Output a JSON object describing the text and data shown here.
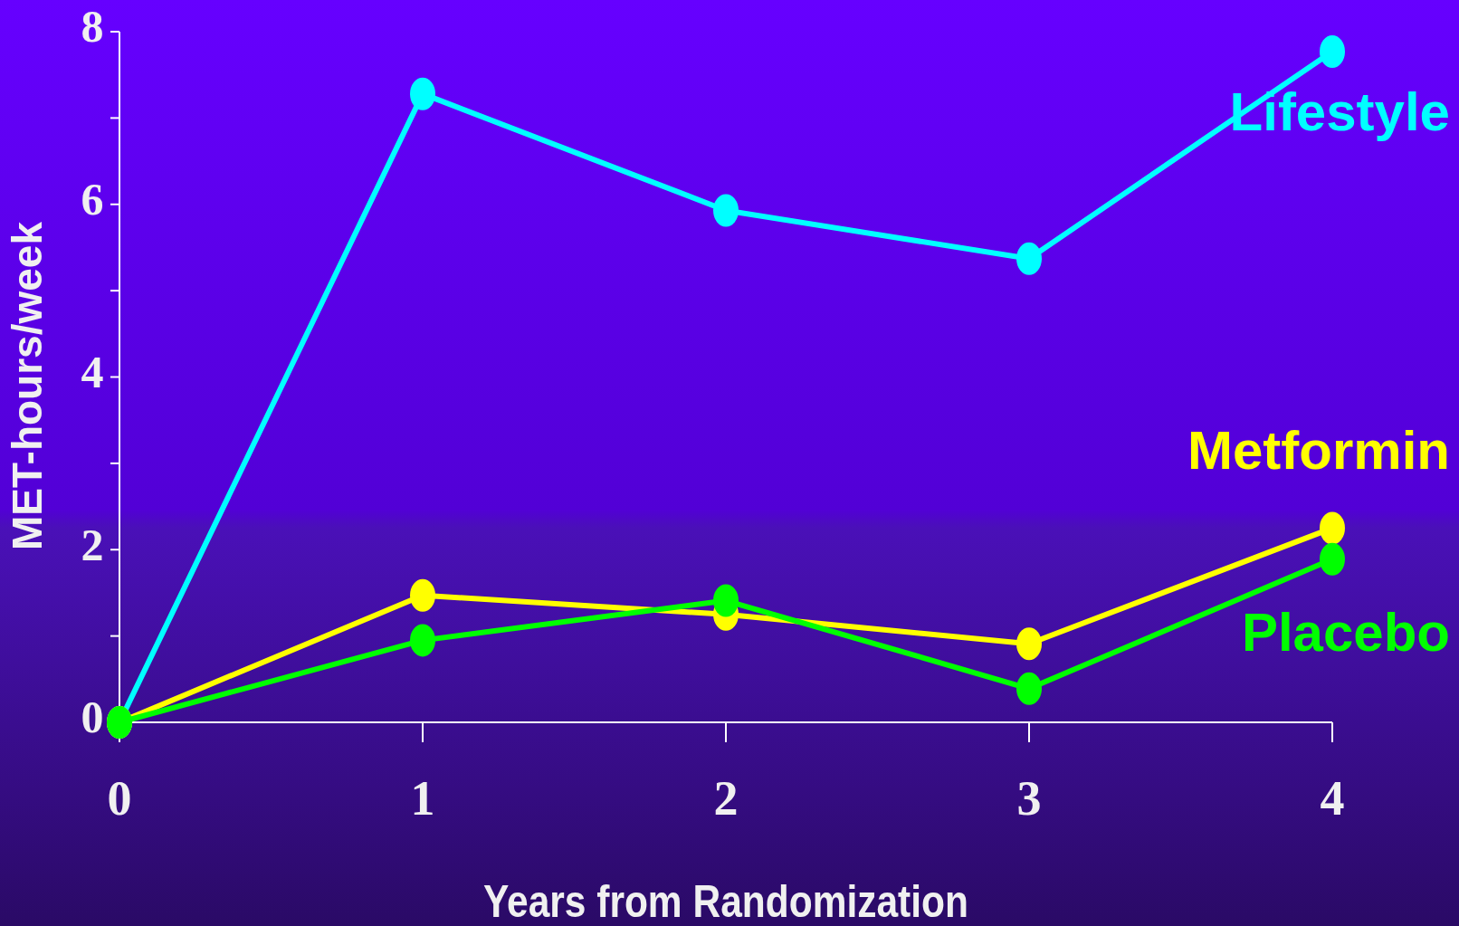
{
  "chart_data": {
    "type": "line",
    "xlabel": "Years from Randomization",
    "ylabel": "MET-hours/week",
    "x": [
      0,
      1,
      2,
      3,
      4
    ],
    "xlim": [
      0,
      4
    ],
    "xticks": [
      0,
      1,
      2,
      3,
      4
    ],
    "ylim": [
      0,
      8
    ],
    "yticks": [
      0,
      {
        "value": 1,
        "label": null
      },
      2,
      {
        "value": 3,
        "label": null
      },
      4,
      {
        "value": 5,
        "label": null
      },
      6,
      {
        "value": 7,
        "label": null
      },
      8
    ],
    "marker": "circle",
    "grid": false,
    "legend": false,
    "series": [
      {
        "name": "Lifestyle",
        "color": "#00ffff",
        "values": [
          0,
          7.28,
          5.93,
          5.37,
          7.77
        ]
      },
      {
        "name": "Metformin",
        "color": "#ffff00",
        "values": [
          0,
          1.47,
          1.25,
          0.91,
          2.25
        ]
      },
      {
        "name": "Placebo",
        "color": "#00ff00",
        "values": [
          0,
          0.95,
          1.41,
          0.39,
          1.89
        ]
      }
    ]
  }
}
